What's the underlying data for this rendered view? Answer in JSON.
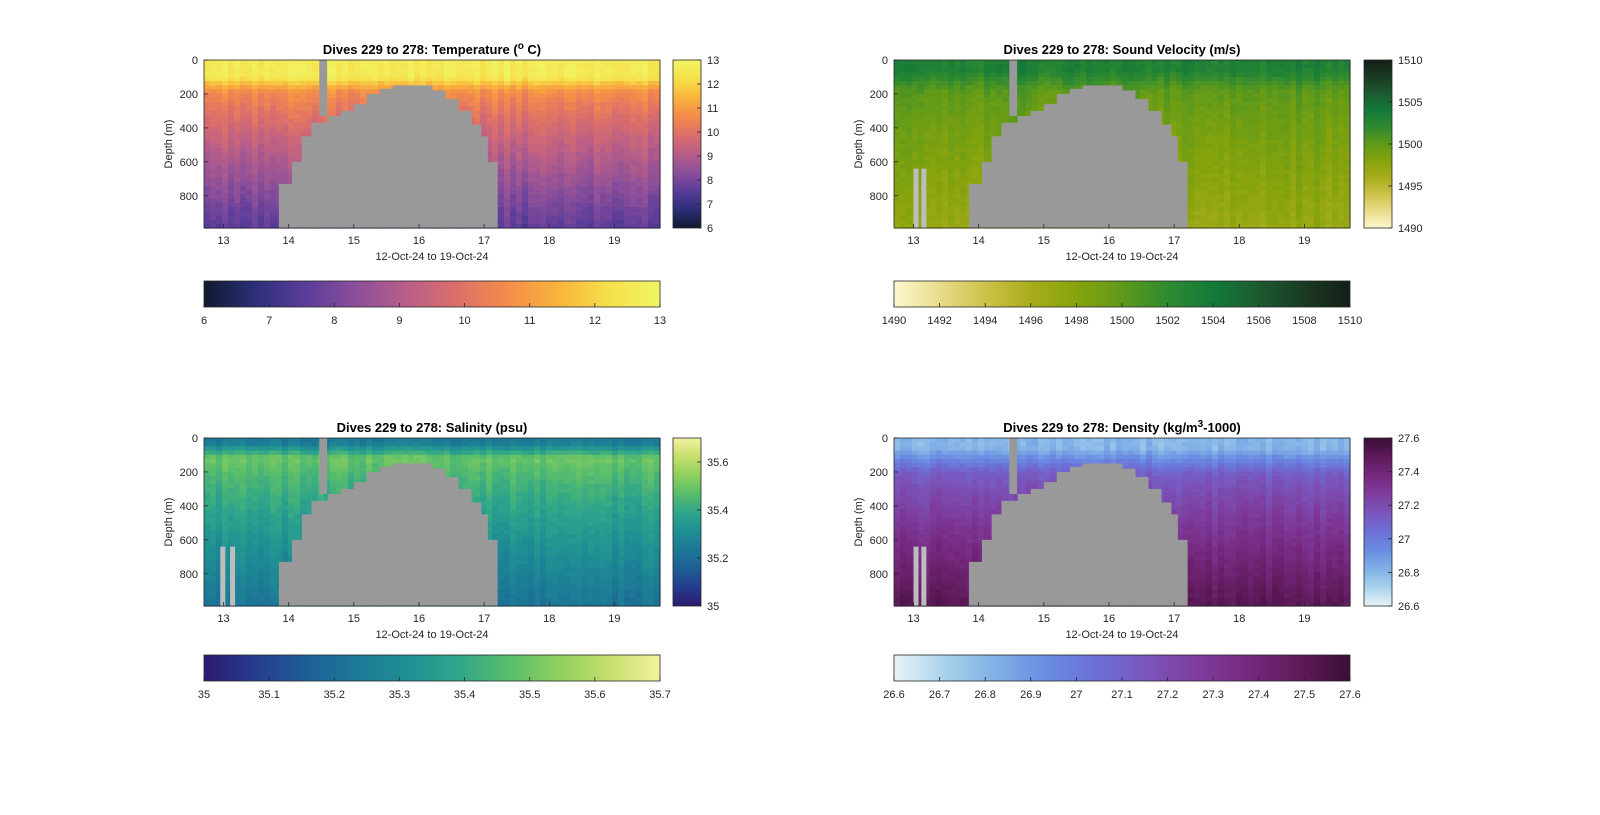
{
  "figure": {
    "background": "#ffffff",
    "mask_color": "#999999"
  },
  "chart_data": [
    {
      "type": "heatmap",
      "id": "temperature",
      "title_prefix": "Dives 229 to 278: Temperature (",
      "title_sup": "o",
      "title_suffix": " C)",
      "xlabel": "12-Oct-24 to 19-Oct-24",
      "ylabel": "Depth (m)",
      "x_tick_labels": [
        "13",
        "14",
        "15",
        "16",
        "17",
        "18",
        "19"
      ],
      "x_tick_values": [
        13,
        14,
        15,
        16,
        17,
        18,
        19
      ],
      "xlim": [
        12.7,
        19.7
      ],
      "y_tick_labels": [
        "0",
        "200",
        "400",
        "600",
        "800"
      ],
      "y_tick_values": [
        0,
        200,
        400,
        600,
        800
      ],
      "ylim": [
        0,
        990
      ],
      "y_reversed": true,
      "colorbar": {
        "range": [
          6,
          13
        ],
        "side_ticks": [
          "6",
          "7",
          "8",
          "9",
          "10",
          "11",
          "12",
          "13"
        ],
        "side_tick_values": [
          6,
          7,
          8,
          9,
          10,
          11,
          12,
          13
        ],
        "bottom_ticks": [
          "6",
          "7",
          "8",
          "9",
          "10",
          "11",
          "12",
          "13"
        ],
        "bottom_tick_values": [
          6,
          7,
          8,
          9,
          10,
          11,
          12,
          13
        ],
        "colormap": [
          "#0f1a2e",
          "#2c2f78",
          "#5a3c9a",
          "#8c4f9a",
          "#b85e88",
          "#dc6f6a",
          "#f48d4a",
          "#f9b43c",
          "#f6e04a",
          "#f0f566"
        ]
      },
      "profile": {
        "surface_value": 12.6,
        "mixed_depth": 100,
        "thermo_value": 10.8,
        "thermo_depth": 180,
        "deep_value": 7.6,
        "deep_depth": 990
      },
      "gaps": [
        {
          "x": 14.47,
          "depth": 0,
          "width": 0.12
        }
      ],
      "low_dives": []
    },
    {
      "type": "heatmap",
      "id": "sound_velocity",
      "title_prefix": "Dives 229 to 278: Sound Velocity (m/s)",
      "title_sup": "",
      "title_suffix": "",
      "xlabel": "12-Oct-24 to 19-Oct-24",
      "ylabel": "Depth (m)",
      "x_tick_labels": [
        "13",
        "14",
        "15",
        "16",
        "17",
        "18",
        "19"
      ],
      "x_tick_values": [
        13,
        14,
        15,
        16,
        17,
        18,
        19
      ],
      "xlim": [
        12.7,
        19.7
      ],
      "y_tick_labels": [
        "0",
        "200",
        "400",
        "600",
        "800"
      ],
      "y_tick_values": [
        0,
        200,
        400,
        600,
        800
      ],
      "ylim": [
        0,
        990
      ],
      "y_reversed": true,
      "colorbar": {
        "range": [
          1490,
          1510
        ],
        "side_ticks": [
          "1490",
          "1495",
          "1500",
          "1505",
          "1510"
        ],
        "side_tick_values": [
          1490,
          1495,
          1500,
          1505,
          1510
        ],
        "bottom_ticks": [
          "1490",
          "1492",
          "1494",
          "1496",
          "1498",
          "1500",
          "1502",
          "1504",
          "1506",
          "1508",
          "1510"
        ],
        "bottom_tick_values": [
          1490,
          1492,
          1494,
          1496,
          1498,
          1500,
          1502,
          1504,
          1506,
          1508,
          1510
        ],
        "colormap": [
          "#fdf8cf",
          "#e8dc8a",
          "#cdc24a",
          "#a8ad1c",
          "#86a30c",
          "#5f9a1a",
          "#2f8a30",
          "#147a3a",
          "#1c5a2f",
          "#1a3a22",
          "#141e16"
        ]
      },
      "profile": {
        "surface_value": 1503.2,
        "mixed_depth": 60,
        "thermo_value": 1500.2,
        "thermo_depth": 180,
        "deep_value": 1497.0,
        "deep_depth": 990
      },
      "gaps": [
        {
          "x": 14.47,
          "depth": 0,
          "width": 0.12
        }
      ],
      "low_dives": [
        13.0,
        13.12
      ]
    },
    {
      "type": "heatmap",
      "id": "salinity",
      "title_prefix": "Dives 229 to 278: Salinity (psu)",
      "title_sup": "",
      "title_suffix": "",
      "xlabel": "12-Oct-24 to 19-Oct-24",
      "ylabel": "Depth (m)",
      "x_tick_labels": [
        "13",
        "14",
        "15",
        "16",
        "17",
        "18",
        "19"
      ],
      "x_tick_values": [
        13,
        14,
        15,
        16,
        17,
        18,
        19
      ],
      "xlim": [
        12.7,
        19.7
      ],
      "y_tick_labels": [
        "0",
        "200",
        "400",
        "600",
        "800"
      ],
      "y_tick_values": [
        0,
        200,
        400,
        600,
        800
      ],
      "ylim": [
        0,
        990
      ],
      "y_reversed": true,
      "colorbar": {
        "range": [
          35,
          35.7
        ],
        "side_ticks": [
          "35",
          "35.2",
          "35.4",
          "35.6"
        ],
        "side_tick_values": [
          35,
          35.2,
          35.4,
          35.6
        ],
        "bottom_ticks": [
          "35",
          "35.1",
          "35.2",
          "35.3",
          "35.4",
          "35.5",
          "35.6",
          "35.7"
        ],
        "bottom_tick_values": [
          35,
          35.1,
          35.2,
          35.3,
          35.4,
          35.5,
          35.6,
          35.7
        ],
        "colormap": [
          "#2a1a6e",
          "#263c8e",
          "#1d5e96",
          "#1c7896",
          "#1f8f94",
          "#2fa58a",
          "#58bd6c",
          "#8fd05e",
          "#c5df6c",
          "#f4f2a0"
        ]
      },
      "profile": {
        "surface_value": 35.24,
        "mixed_depth": 30,
        "thermo_value": 35.5,
        "thermo_depth": 120,
        "deep_value": 35.22,
        "deep_depth": 990
      },
      "gaps": [
        {
          "x": 14.47,
          "depth": 0,
          "width": 0.12
        }
      ],
      "low_dives": [
        12.95,
        13.1
      ]
    },
    {
      "type": "heatmap",
      "id": "density",
      "title_prefix": "Dives 229 to 278: Density (kg/m",
      "title_sup": "3",
      "title_suffix": "-1000)",
      "xlabel": "12-Oct-24 to 19-Oct-24",
      "ylabel": "Depth (m)",
      "x_tick_labels": [
        "13",
        "14",
        "15",
        "16",
        "17",
        "18",
        "19"
      ],
      "x_tick_values": [
        13,
        14,
        15,
        16,
        17,
        18,
        19
      ],
      "xlim": [
        12.7,
        19.7
      ],
      "y_tick_labels": [
        "0",
        "200",
        "400",
        "600",
        "800"
      ],
      "y_tick_values": [
        0,
        200,
        400,
        600,
        800
      ],
      "ylim": [
        0,
        990
      ],
      "y_reversed": true,
      "colorbar": {
        "range": [
          26.6,
          27.6
        ],
        "side_ticks": [
          "26.6",
          "26.8",
          "27",
          "27.2",
          "27.4",
          "27.6"
        ],
        "side_tick_values": [
          26.6,
          26.8,
          27,
          27.2,
          27.4,
          27.6
        ],
        "bottom_ticks": [
          "26.6",
          "26.7",
          "26.8",
          "26.9",
          "27",
          "27.1",
          "27.2",
          "27.3",
          "27.4",
          "27.5",
          "27.6"
        ],
        "bottom_tick_values": [
          26.6,
          26.7,
          26.8,
          26.9,
          27,
          27.1,
          27.2,
          27.3,
          27.4,
          27.5,
          27.6
        ],
        "colormap": [
          "#e8f4f6",
          "#a9d2ec",
          "#7fb0e6",
          "#6a8ce2",
          "#6c6fd6",
          "#7a55bc",
          "#7e3d9e",
          "#76287e",
          "#5e1a5a",
          "#3a0f36"
        ]
      },
      "profile": {
        "surface_value": 26.8,
        "mixed_depth": 60,
        "thermo_value": 27.1,
        "thermo_depth": 200,
        "deep_value": 27.5,
        "deep_depth": 990
      },
      "gaps": [
        {
          "x": 14.47,
          "depth": 0,
          "width": 0.12
        }
      ],
      "low_dives": [
        13.0,
        13.12
      ]
    }
  ],
  "seafloor": {
    "x": [
      13.85,
      14.05,
      14.2,
      14.35,
      14.6,
      14.8,
      15.0,
      15.2,
      15.4,
      15.6,
      15.8,
      16.0,
      16.2,
      16.4,
      16.6,
      16.8,
      16.95,
      17.05,
      17.2
    ],
    "depth": [
      730,
      600,
      450,
      370,
      330,
      300,
      260,
      200,
      170,
      150,
      150,
      150,
      180,
      230,
      300,
      380,
      450,
      600,
      730
    ],
    "end_x": 17.2,
    "bottom_depth": 990
  }
}
